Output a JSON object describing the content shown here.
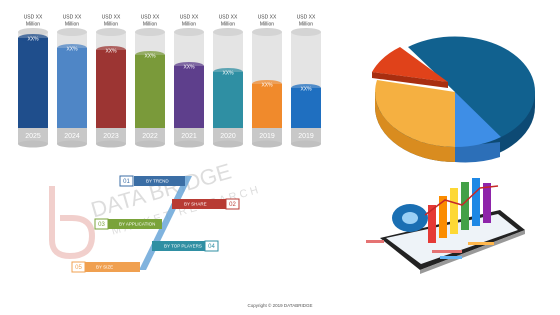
{
  "cylinders": [
    {
      "top_line": "USD XX",
      "unit": "Million",
      "value_label": "XX%",
      "year": "2025"
    },
    {
      "top_line": "USD XX",
      "unit": "Million",
      "value_label": "XX%",
      "year": "2024"
    },
    {
      "top_line": "USD XX",
      "unit": "Million",
      "value_label": "XX%",
      "year": "2023"
    },
    {
      "top_line": "USD XX",
      "unit": "Million",
      "value_label": "XX%",
      "year": "2022"
    },
    {
      "top_line": "USD XX",
      "unit": "Million",
      "value_label": "XX%",
      "year": "2021"
    },
    {
      "top_line": "USD XX",
      "unit": "Million",
      "value_label": "XX%",
      "year": "2020"
    },
    {
      "top_line": "USD XX",
      "unit": "Million",
      "value_label": "XX%",
      "year": "2019"
    },
    {
      "top_line": "USD XX",
      "unit": "Million",
      "value_label": "XX%",
      "year": "2019"
    }
  ],
  "steps": [
    {
      "number": "01",
      "label": "BY TREND"
    },
    {
      "number": "02",
      "label": "BY SHARE"
    },
    {
      "number": "03",
      "label": "BY APPLICATION"
    },
    {
      "number": "04",
      "label": "BY TOP PLAYERS"
    },
    {
      "number": "05",
      "label": "BY SIZE"
    }
  ],
  "watermark": {
    "line1": "DATA BRIDGE",
    "line2": "MARKET RESEARCH"
  },
  "footer": {
    "copyright": "Copyright © 2019 DATABRIDGE"
  }
}
